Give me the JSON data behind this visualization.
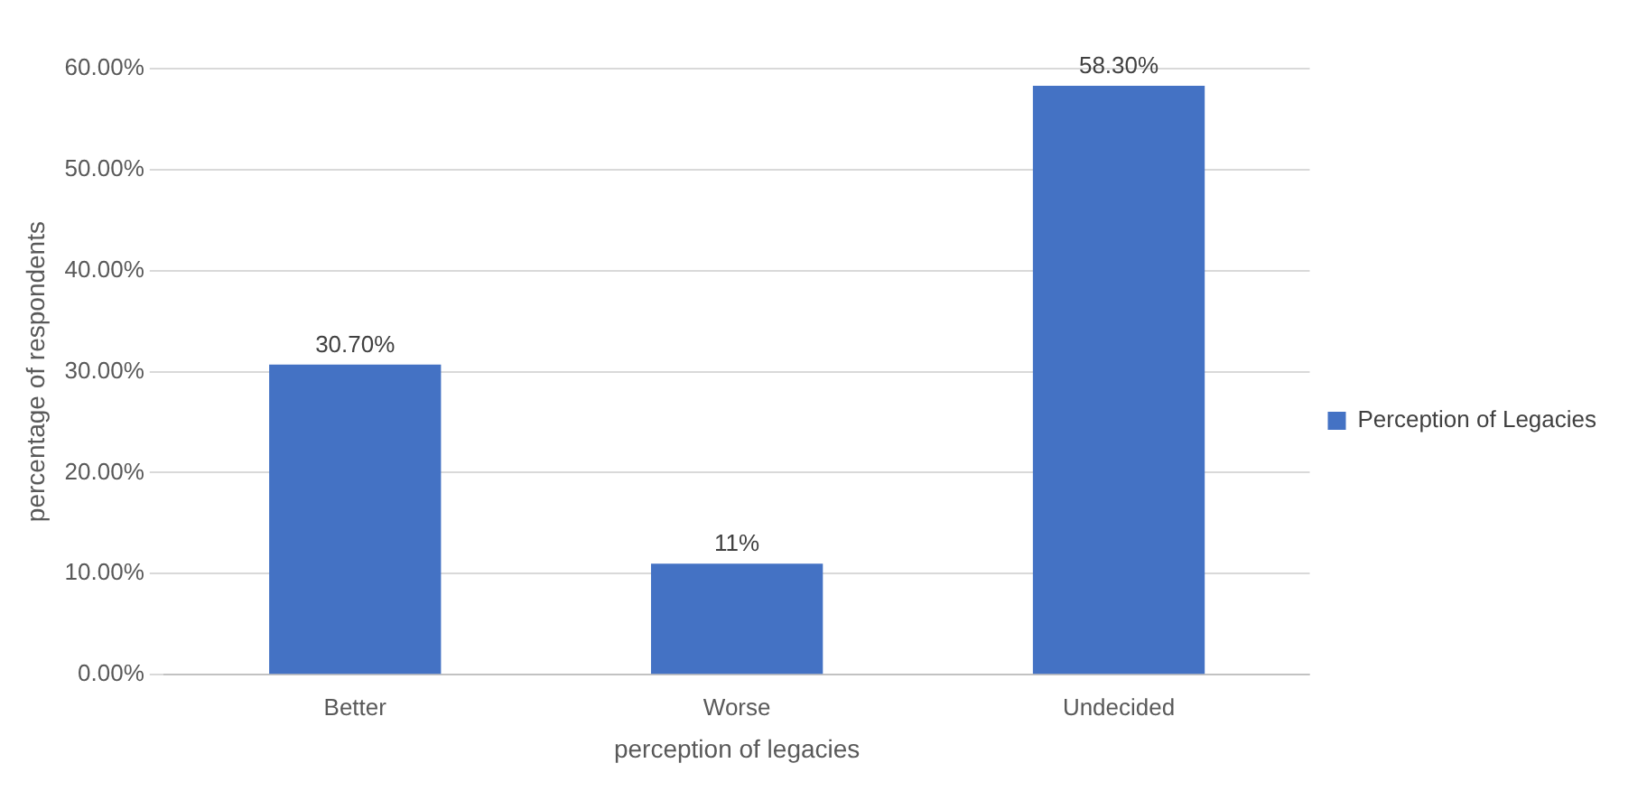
{
  "chart_data": {
    "type": "bar",
    "xlabel": "perception of legacies",
    "ylabel": "percentage of respondents",
    "categories": [
      "Better",
      "Worse",
      "Undecided"
    ],
    "series": [
      {
        "name": "Perception of Legacies",
        "color": "#4472c4",
        "values": [
          30.7,
          11,
          58.3
        ],
        "value_labels": [
          "30.70%",
          "11%",
          "58.30%"
        ]
      }
    ],
    "ylim": [
      0,
      60
    ],
    "yticks": [
      {
        "value": 0,
        "label": "0.00%"
      },
      {
        "value": 10,
        "label": "10.00%"
      },
      {
        "value": 20,
        "label": "20.00%"
      },
      {
        "value": 30,
        "label": "30.00%"
      },
      {
        "value": 40,
        "label": "40.00%"
      },
      {
        "value": 50,
        "label": "50.00%"
      },
      {
        "value": 60,
        "label": "60.00%"
      }
    ],
    "grid": "y",
    "legend": "right"
  }
}
